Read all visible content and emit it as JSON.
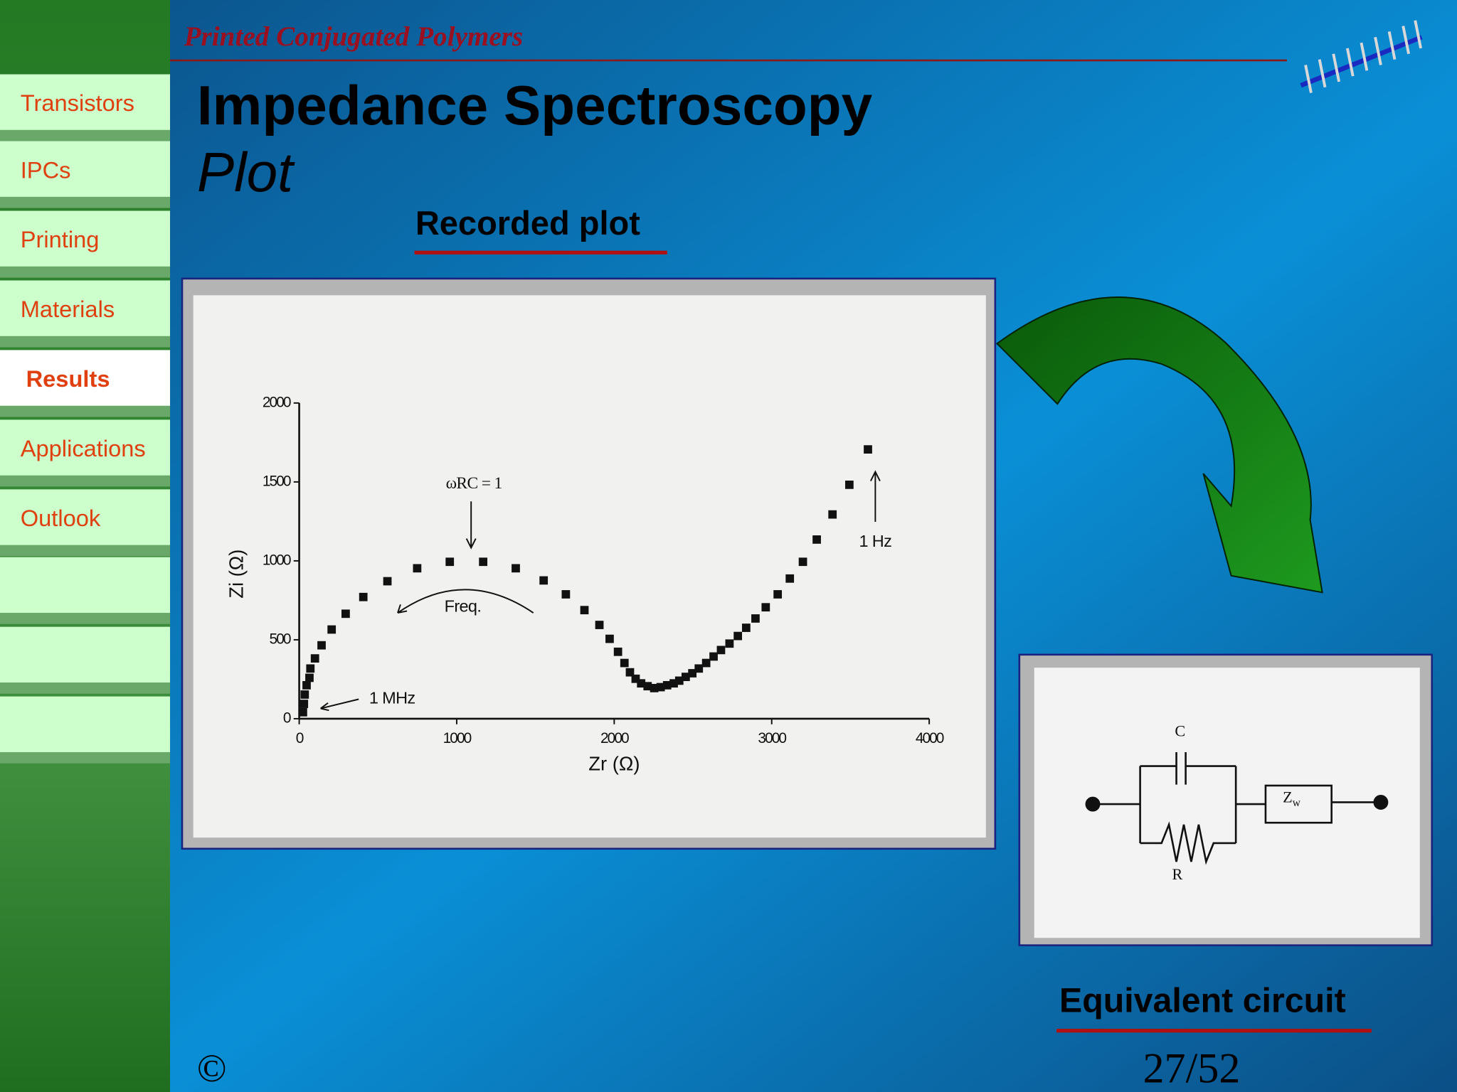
{
  "header": {
    "title": "Printed Conjugated Polymers"
  },
  "nav": {
    "items": [
      "Transistors",
      "IPCs",
      "Printing",
      "Materials",
      "Results",
      "Applications",
      "Outlook"
    ],
    "active": 4
  },
  "slide": {
    "title": "Impedance Spectroscopy",
    "subtitle": "Plot",
    "plot_caption": "Recorded plot",
    "circuit_caption": "Equivalent circuit",
    "copyright": "©",
    "page": "27/52"
  },
  "chart_data": {
    "type": "scatter",
    "xlabel": "Zr (Ω)",
    "ylabel": "Zi (Ω)",
    "x": [
      24,
      30,
      35,
      47,
      65,
      71,
      100,
      142,
      206,
      295,
      407,
      560,
      749,
      956,
      1168,
      1375,
      1552,
      1693,
      1811,
      1906,
      1971,
      2024,
      2065,
      2100,
      2136,
      2171,
      2212,
      2254,
      2295,
      2336,
      2378,
      2413,
      2454,
      2496,
      2537,
      2584,
      2631,
      2678,
      2732,
      2785,
      2838,
      2897,
      2962,
      3038,
      3115,
      3198,
      3286,
      3386,
      3493,
      3611
    ],
    "values": [
      41,
      94,
      153,
      212,
      259,
      318,
      382,
      465,
      565,
      665,
      771,
      871,
      953,
      994,
      994,
      953,
      876,
      788,
      688,
      594,
      506,
      424,
      353,
      294,
      253,
      224,
      206,
      194,
      200,
      212,
      224,
      241,
      265,
      288,
      318,
      353,
      394,
      435,
      476,
      524,
      576,
      635,
      706,
      788,
      888,
      994,
      1135,
      1294,
      1482,
      1706
    ],
    "xlim": [
      0,
      4000
    ],
    "ylim": [
      0,
      2000
    ],
    "xticks": [
      0,
      1000,
      2000,
      3000,
      4000
    ],
    "yticks": [
      0,
      500,
      1000,
      1500,
      2000
    ],
    "color": "#111111",
    "annotations": [
      "ωRC = 1",
      "Freq.",
      "1 MHz",
      "1 Hz"
    ]
  },
  "circuit": {
    "capacitor": "C",
    "resistor": "R",
    "impedance": "Z",
    "impedance_subscript": "w"
  }
}
